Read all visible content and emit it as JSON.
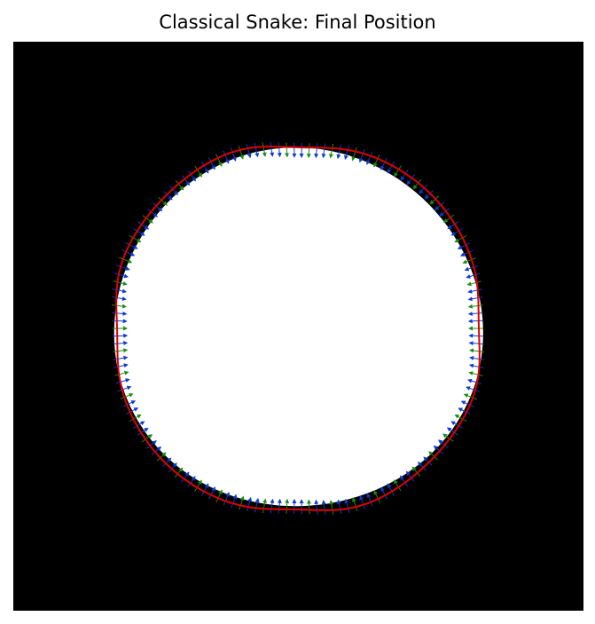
{
  "figure": {
    "title": "Classical Snake: Final Position"
  },
  "colors": {
    "background": "#000000",
    "object": "#ffffff",
    "snake_contour": "#e00000",
    "force_arrow_primary": "#0a3ccf",
    "force_arrow_secondary": "#1a8a1a"
  },
  "icons": {
    "arrowhead": "triangle-arrowhead-icon"
  }
}
